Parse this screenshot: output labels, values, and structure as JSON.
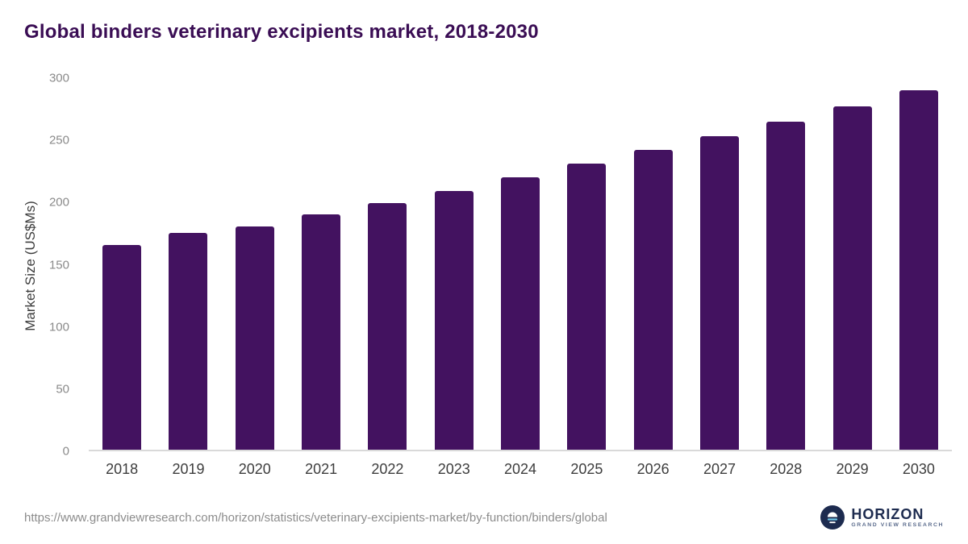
{
  "title": "Global binders veterinary excipients market, 2018-2030",
  "chart_data": {
    "type": "bar",
    "categories": [
      "2018",
      "2019",
      "2020",
      "2021",
      "2022",
      "2023",
      "2024",
      "2025",
      "2026",
      "2027",
      "2028",
      "2029",
      "2030"
    ],
    "values": [
      165,
      175,
      180,
      190,
      199,
      209,
      220,
      231,
      242,
      253,
      265,
      277,
      290
    ],
    "title": "Global binders veterinary excipients market, 2018-2030",
    "xlabel": "",
    "ylabel": "Market Size (US$Ms)",
    "ylim": [
      0,
      300
    ],
    "yticks": [
      0,
      50,
      100,
      150,
      200,
      250,
      300
    ],
    "bar_color": "#431260",
    "grid": false,
    "legend_position": "none"
  },
  "footer": {
    "source_url": "https://www.grandviewresearch.com/horizon/statistics/veterinary-excipients-market/by-function/binders/global",
    "logo": {
      "name": "HORIZON",
      "subtitle": "GRAND VIEW RESEARCH"
    }
  },
  "colors": {
    "bar": "#431260",
    "title": "#3a0d54",
    "axis_line": "#d9d9d9",
    "tick_label": "#8a8a8a",
    "logo_navy": "#1d2b4f"
  }
}
